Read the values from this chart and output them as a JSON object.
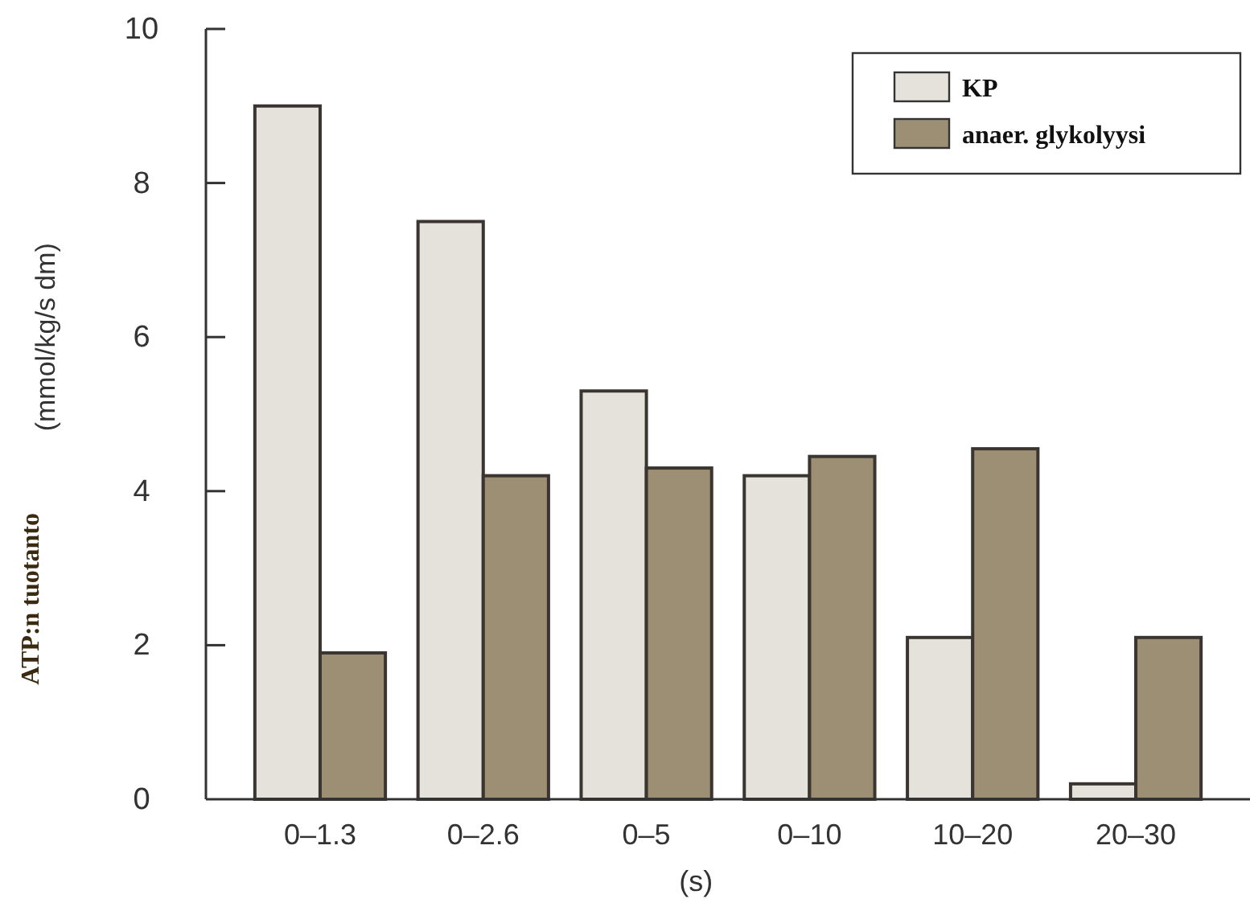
{
  "chart_data": {
    "type": "bar",
    "categories": [
      "0–1.3",
      "0–2.6",
      "0–5",
      "0–10",
      "10–20",
      "20–30"
    ],
    "series": [
      {
        "name": "KP",
        "color": "#e4e2da",
        "values": [
          9.0,
          7.5,
          5.3,
          4.2,
          2.1,
          0.2
        ]
      },
      {
        "name": "anaer. glykolyysi",
        "color": "#9c8f74",
        "values": [
          1.9,
          4.2,
          4.3,
          4.45,
          4.55,
          2.1
        ]
      }
    ],
    "ylabel": "(mmol/kg/s dm)",
    "xlabel": "(s)",
    "annotations": [
      "ATP:n tuotanto"
    ],
    "ylim": [
      0,
      10
    ],
    "yticks": [
      0,
      2,
      4,
      6,
      8,
      10
    ],
    "legend": "top right",
    "grid": false
  }
}
